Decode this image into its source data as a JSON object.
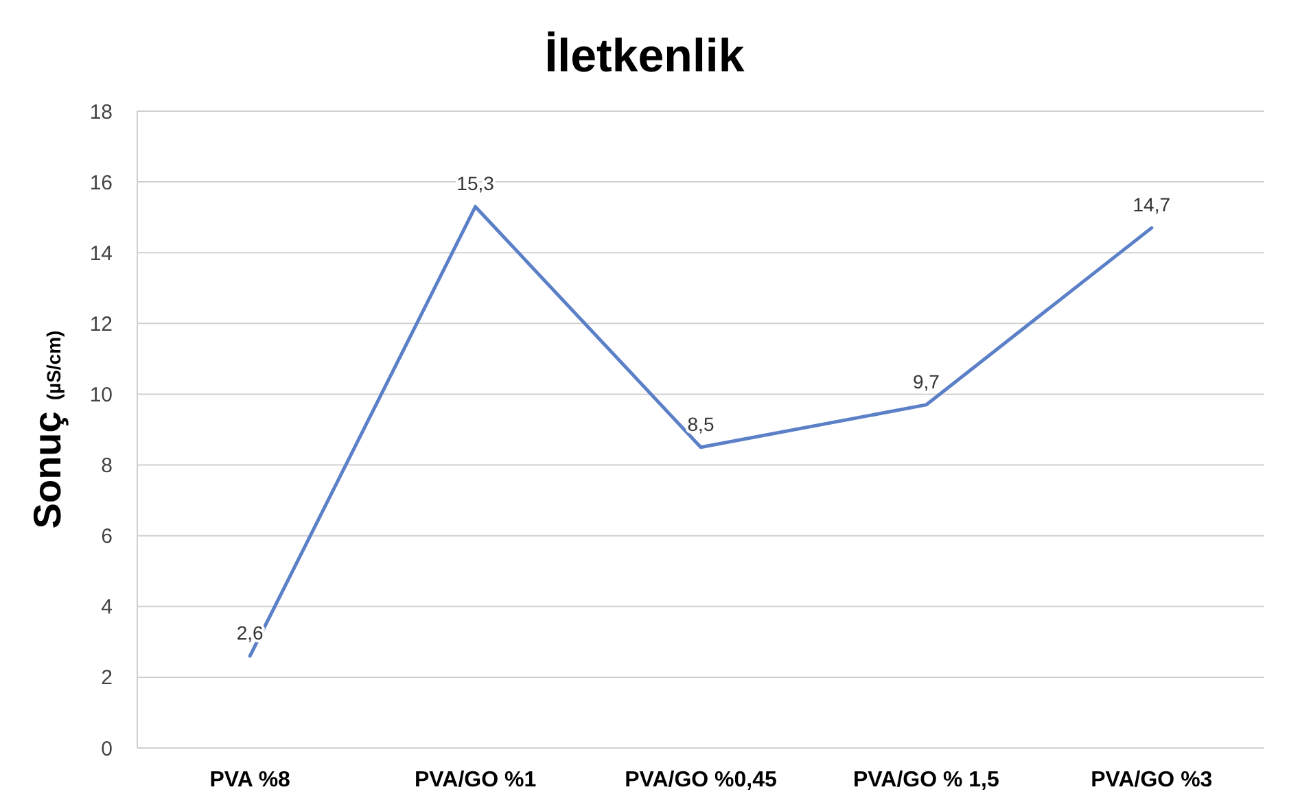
{
  "chart_data": {
    "type": "line",
    "title": "İletkenlik",
    "ylabel": "Sonuç (µS/cm)",
    "categories": [
      "PVA %8",
      "PVA/GO %1",
      "PVA/GO %0,45",
      "PVA/GO % 1,5",
      "PVA/GO %3"
    ],
    "series": [
      {
        "color": "#5b80c8",
        "values": [
          2.6,
          15.3,
          8.5,
          9.7,
          14.7
        ],
        "value_labels": [
          "2,6",
          "15,3",
          "8,5",
          "9,7",
          "14,7"
        ]
      }
    ],
    "ylim": [
      0,
      18
    ],
    "yticks": [
      0,
      2,
      4,
      6,
      8,
      10,
      12,
      14,
      16,
      18
    ],
    "grid": "y",
    "marker": "none",
    "line_style": "solid"
  }
}
